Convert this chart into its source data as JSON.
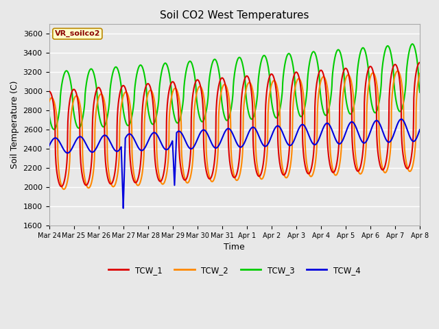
{
  "title": "Soil CO2 West Temperatures",
  "ylabel": "Soil Temperature (C)",
  "xlabel": "Time",
  "legend_label": "VR_soilco2",
  "ylim": [
    1600,
    3700
  ],
  "yticks": [
    1600,
    1800,
    2000,
    2200,
    2400,
    2600,
    2800,
    3000,
    3200,
    3400,
    3600
  ],
  "fig_bg": "#e8e8e8",
  "plot_bg": "#e0e0e0",
  "lines": {
    "TCW_1": {
      "color": "#dd0000",
      "lw": 1.5
    },
    "TCW_2": {
      "color": "#ff8800",
      "lw": 1.5
    },
    "TCW_3": {
      "color": "#00cc00",
      "lw": 1.5
    },
    "TCW_4": {
      "color": "#0000dd",
      "lw": 1.5
    }
  },
  "xtick_labels": [
    "Mar 24",
    "Mar 25",
    "Mar 26",
    "Mar 27",
    "Mar 28",
    "Mar 29",
    "Mar 30",
    "Mar 31",
    "Apr 1",
    "Apr 2",
    "Apr 3",
    "Apr 4",
    "Apr 5",
    "Apr 6",
    "Apr 7",
    "Apr 8"
  ],
  "n_points": 1440,
  "start_day": 0,
  "end_day": 15,
  "period": 1.0
}
